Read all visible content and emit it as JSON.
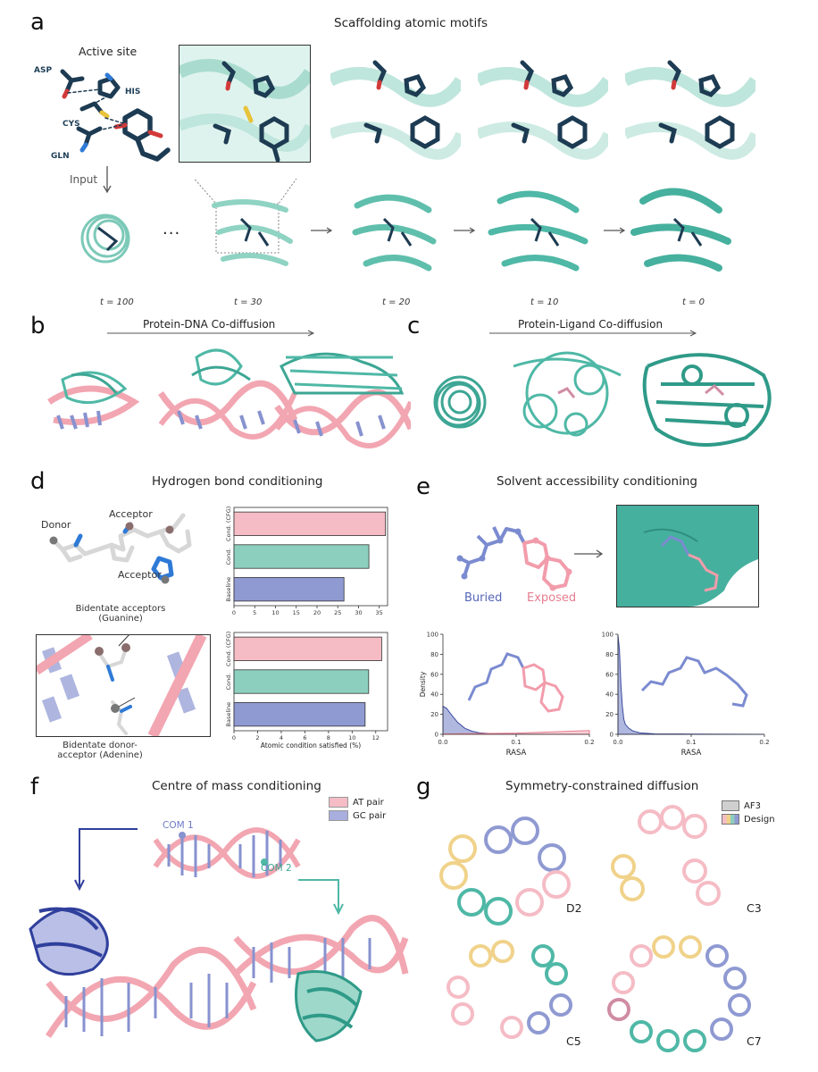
{
  "colors": {
    "teal": "#4fb8a6",
    "teal_dark": "#2f9a88",
    "navy": "#1d3b52",
    "pink": "#f2a6b1",
    "pink_dark": "#e98a98",
    "blue": "#8792cf",
    "blue_dark": "#2f3f9c",
    "red": "#d23a3a",
    "gold": "#f0c850"
  },
  "panel_a": {
    "label": "a",
    "title": "Scaffolding atomic motifs",
    "active_site": "Active site",
    "residues": [
      "ASP",
      "HIS",
      "CYS",
      "GLN"
    ],
    "input": "Input",
    "ellipsis": "...",
    "timesteps": [
      "t = 100",
      "t = 30",
      "t = 20",
      "t = 10",
      "t = 0"
    ]
  },
  "panel_b": {
    "label": "b",
    "title": "Protein-DNA Co-diffusion"
  },
  "panel_c": {
    "label": "c",
    "title": "Protein-Ligand Co-diffusion"
  },
  "panel_d": {
    "label": "d",
    "title": "Hydrogen bond conditioning",
    "donor": "Donor",
    "acceptor1": "Acceptor",
    "acceptor2": "Acceptor",
    "bidentate_acc_line1": "Bidentate acceptors",
    "bidentate_acc_line2": "(Guanine)",
    "bidentate_don_line1": "Bidentate donor-",
    "bidentate_don_line2": "acceptor (Adenine)",
    "xlabel": "Atomic condition satisfied (%)"
  },
  "panel_e": {
    "label": "e",
    "title": "Solvent accessibility conditioning",
    "buried": "Buried",
    "exposed": "Exposed"
  },
  "panel_f": {
    "label": "f",
    "title": "Centre of mass conditioning",
    "legend": [
      "AT pair",
      "GC pair"
    ],
    "com1": "COM 1",
    "com2": "COM 2"
  },
  "panel_g": {
    "label": "g",
    "title": "Symmetry-constrained diffusion",
    "legend": [
      "AF3",
      "Design"
    ],
    "symmetries": [
      "D2",
      "C3",
      "C5",
      "C7"
    ]
  },
  "chart_data": [
    {
      "type": "bar",
      "orientation": "horizontal",
      "categories": [
        "Cond. (CFG)",
        "Cond.",
        "Baseline"
      ],
      "values": [
        36.5,
        32.5,
        26.5
      ],
      "colors": [
        "#f5bcc5",
        "#8ccfbf",
        "#8f9ad2"
      ],
      "xlim": [
        0,
        37
      ],
      "xticks": [
        0,
        5,
        10,
        15,
        20,
        25,
        30,
        35
      ],
      "xlabel": ""
    },
    {
      "type": "bar",
      "orientation": "horizontal",
      "categories": [
        "Cond. (CFG)",
        "Cond.",
        "Baseline"
      ],
      "values": [
        12.5,
        11.4,
        11.1
      ],
      "colors": [
        "#f5bcc5",
        "#8ccfbf",
        "#8f9ad2"
      ],
      "xlim": [
        0,
        13
      ],
      "xticks": [
        0,
        2,
        4,
        6,
        8,
        10,
        12
      ],
      "xlabel": "Atomic condition satisfied (%)"
    },
    {
      "type": "area",
      "ylabel": "Density",
      "xlabel": "RASA",
      "xlim": [
        0.0,
        0.2
      ],
      "ylim": [
        0,
        100
      ],
      "xticks": [
        0.0,
        0.1,
        0.2
      ],
      "yticks": [
        0,
        20,
        40,
        60,
        80,
        100
      ],
      "series": [
        {
          "name": "Buried",
          "x": [
            0.0,
            0.005,
            0.01,
            0.02,
            0.03,
            0.04,
            0.05,
            0.07,
            0.1,
            0.15,
            0.2
          ],
          "y": [
            28,
            26,
            21,
            12,
            6,
            3,
            1.5,
            0.6,
            0.3,
            0.1,
            0
          ]
        },
        {
          "name": "Exposed",
          "x": [
            0.0,
            0.05,
            0.1,
            0.15,
            0.2
          ],
          "y": [
            0.5,
            0.8,
            1.2,
            2.5,
            3.8
          ]
        }
      ]
    },
    {
      "type": "area",
      "ylabel": "",
      "xlabel": "RASA",
      "xlim": [
        0.0,
        0.2
      ],
      "ylim": [
        0,
        100
      ],
      "xticks": [
        0.0,
        0.1,
        0.2
      ],
      "yticks": [
        0,
        20,
        40,
        60,
        80,
        100
      ],
      "series": [
        {
          "name": "Buried",
          "x": [
            0.0,
            0.002,
            0.004,
            0.006,
            0.008,
            0.01,
            0.015,
            0.02,
            0.03,
            0.05,
            0.1,
            0.2
          ],
          "y": [
            99,
            85,
            50,
            28,
            15,
            10,
            6,
            3.5,
            1.5,
            0.5,
            0.2,
            0
          ]
        }
      ]
    }
  ]
}
